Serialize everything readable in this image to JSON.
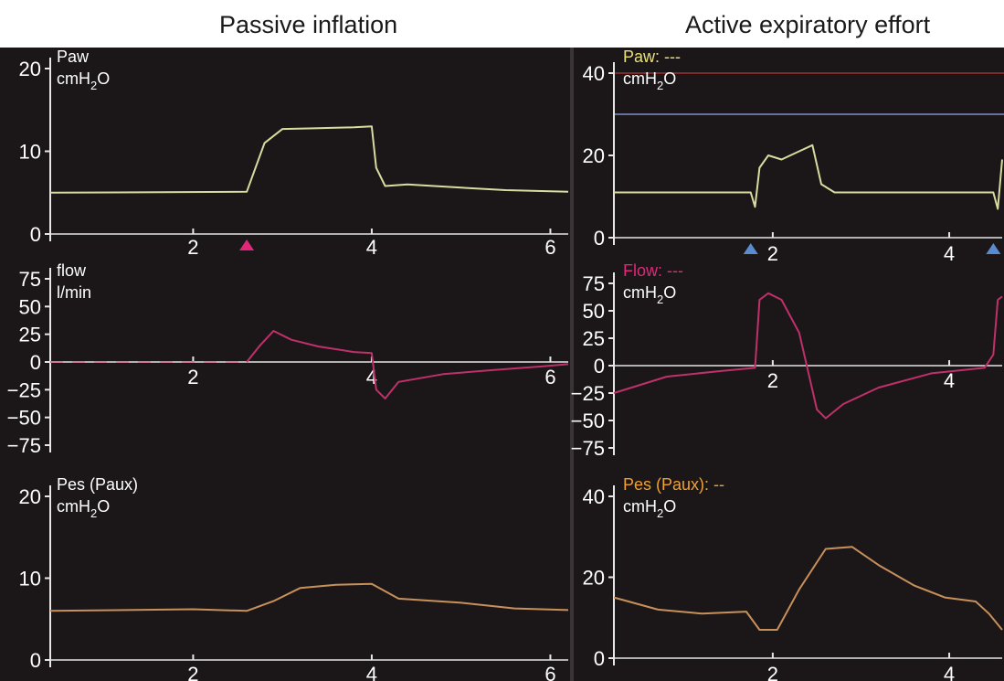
{
  "figure": {
    "title_left": "Passive inflation",
    "title_right": "Active expiratory effort",
    "background": "#1b1718",
    "axis_color": "#e6e6e6"
  },
  "chart_data": [
    {
      "type": "line",
      "column": "Passive inflation",
      "label_lines": [
        "Paw",
        "cmH2O"
      ],
      "label_color": "#ffffff",
      "color": "#d8dca0",
      "ylim": [
        0,
        20
      ],
      "yticks": [
        0,
        10,
        20
      ],
      "xlim": [
        0.4,
        6.2
      ],
      "xticks": [
        2,
        4,
        6
      ],
      "series": [
        {
          "x": [
            0.4,
            2.6,
            2.8,
            3.0,
            3.4,
            3.8,
            4.0,
            4.05,
            4.15,
            4.4,
            5.0,
            5.5,
            6.2
          ],
          "y": [
            5,
            5.1,
            11,
            12.7,
            12.8,
            12.9,
            13,
            8,
            5.8,
            6,
            5.6,
            5.3,
            5.1
          ]
        }
      ],
      "markers": [
        {
          "x": 2.6,
          "shape": "triangle-up",
          "color": "#e0287a"
        }
      ]
    },
    {
      "type": "line",
      "column": "Passive inflation",
      "label_lines": [
        "flow",
        "l/min"
      ],
      "label_color": "#ffffff",
      "color": "#c0306a",
      "ylim": [
        -75,
        75
      ],
      "yticks": [
        -75,
        -50,
        -25,
        0,
        25,
        50,
        75
      ],
      "xlim": [
        0.4,
        6.2
      ],
      "xticks": [
        2,
        4,
        6
      ],
      "series": [
        {
          "x": [
            0.4,
            2.6,
            2.75,
            2.9,
            3.1,
            3.4,
            3.8,
            4.0,
            4.05,
            4.15,
            4.3,
            4.8,
            5.4,
            5.9,
            6.2
          ],
          "y": [
            0,
            0,
            15,
            28,
            20,
            14,
            9,
            8,
            -25,
            -33,
            -18,
            -11,
            -7,
            -4,
            -2
          ]
        }
      ],
      "dashed_until_x": 2.6
    },
    {
      "type": "line",
      "column": "Passive inflation",
      "label_lines": [
        "Pes (Paux)",
        "cmH2O"
      ],
      "label_color": "#ffffff",
      "color": "#c8905a",
      "ylim": [
        0,
        20
      ],
      "yticks": [
        0,
        10,
        20
      ],
      "xlim": [
        0.4,
        6.2
      ],
      "xticks": [
        2,
        4,
        6
      ],
      "series": [
        {
          "x": [
            0.4,
            2.0,
            2.6,
            2.9,
            3.2,
            3.6,
            4.0,
            4.3,
            5.0,
            5.6,
            6.2
          ],
          "y": [
            6,
            6.2,
            6,
            7.2,
            8.8,
            9.2,
            9.3,
            7.5,
            7,
            6.3,
            6.1
          ]
        }
      ]
    },
    {
      "type": "line",
      "column": "Active expiratory effort",
      "label_lines": [
        "Paw: ---",
        "cmH2O"
      ],
      "label_color": "#e8e07a",
      "color": "#d8dca0",
      "ylim": [
        0,
        40
      ],
      "yticks": [
        0,
        20,
        40
      ],
      "xlim": [
        0.2,
        4.6
      ],
      "xticks": [
        2,
        4
      ],
      "series": [
        {
          "x": [
            0.2,
            1.75,
            1.8,
            1.85,
            1.95,
            2.1,
            2.3,
            2.45,
            2.55,
            2.7,
            3.5,
            4.5,
            4.55,
            4.6
          ],
          "y": [
            11,
            11,
            7.5,
            17,
            20,
            19,
            21,
            22.5,
            13,
            11,
            11,
            11,
            7,
            19
          ]
        }
      ],
      "reference_lines": [
        {
          "y": 40,
          "color": "#a03030"
        },
        {
          "y": 30,
          "color": "#7a90c8"
        }
      ],
      "markers": [
        {
          "x": 1.75,
          "shape": "triangle-up",
          "color": "#5a8ad0"
        },
        {
          "x": 4.5,
          "shape": "triangle-up",
          "color": "#5a8ad0"
        }
      ]
    },
    {
      "type": "line",
      "column": "Active expiratory effort",
      "label_lines": [
        "Flow: ---",
        "cmH2O"
      ],
      "label_color": "#e0287a",
      "color": "#c0306a",
      "ylim": [
        -75,
        75
      ],
      "yticks": [
        -75,
        -50,
        -25,
        0,
        25,
        50,
        75
      ],
      "xlim": [
        0.2,
        4.6
      ],
      "xticks": [
        2,
        4
      ],
      "series": [
        {
          "x": [
            0.2,
            0.8,
            1.4,
            1.8,
            1.85,
            1.95,
            2.1,
            2.3,
            2.5,
            2.6,
            2.8,
            3.2,
            3.8,
            4.4,
            4.5,
            4.55,
            4.6
          ],
          "y": [
            -25,
            -10,
            -5,
            -2,
            60,
            66,
            60,
            30,
            -40,
            -48,
            -35,
            -20,
            -7,
            -2,
            10,
            60,
            63
          ]
        }
      ]
    },
    {
      "type": "line",
      "column": "Active expiratory effort",
      "label_lines": [
        "Pes (Paux): --",
        "cmH2O"
      ],
      "label_color": "#f0a030",
      "color": "#c8905a",
      "ylim": [
        0,
        40
      ],
      "yticks": [
        0,
        20,
        40
      ],
      "xlim": [
        0.2,
        4.6
      ],
      "xticks": [
        2,
        4
      ],
      "series": [
        {
          "x": [
            0.2,
            0.7,
            1.2,
            1.7,
            1.85,
            2.05,
            2.3,
            2.6,
            2.9,
            3.2,
            3.6,
            3.95,
            4.3,
            4.45,
            4.6
          ],
          "y": [
            15,
            12,
            11,
            11.5,
            7,
            7,
            17,
            27,
            27.5,
            23,
            18,
            15,
            14,
            11,
            7
          ]
        }
      ]
    }
  ]
}
